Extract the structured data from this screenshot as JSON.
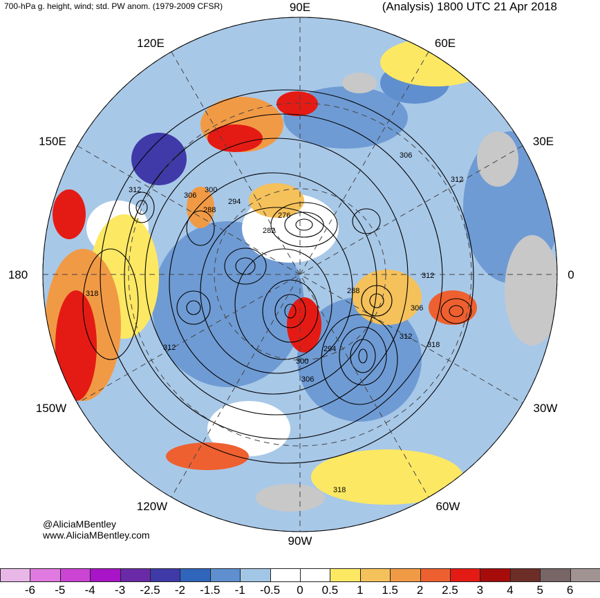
{
  "header": {
    "left_title": "700-hPa g. height, wind; std. PW anom. (1979-2009 CFSR)",
    "right_title": "(Analysis) 1800 UTC 21 Apr 2018"
  },
  "credits": {
    "handle": "@AliciaMBentley",
    "website": "www.AliciaMBentley.com"
  },
  "map": {
    "projection": "north-polar-stereographic",
    "longitude_labels": [
      "90E",
      "60E",
      "30E",
      "0",
      "30W",
      "60W",
      "90W",
      "120W",
      "150W",
      "180",
      "150E",
      "120E"
    ],
    "contour_labels": [
      "306",
      "312",
      "300",
      "294",
      "288",
      "276",
      "282",
      "306",
      "312",
      "318",
      "288",
      "312",
      "306",
      "312",
      "294",
      "300",
      "306",
      "318",
      "318",
      "312"
    ],
    "colors": {
      "land": "#c8c8c8",
      "contour": "#000000"
    }
  },
  "colorbar": {
    "tick_labels": [
      "-6",
      "-5",
      "-4",
      "-3",
      "-2.5",
      "-2",
      "-1.5",
      "-1",
      "-0.5",
      "0",
      "0.5",
      "1",
      "1.5",
      "2",
      "2.5",
      "3",
      "4",
      "5",
      "6"
    ],
    "colors": [
      "#e8b7e8",
      "#e07ae0",
      "#cc44d4",
      "#a814c8",
      "#6a2aa8",
      "#3f3aa8",
      "#2f66bb",
      "#5f8fcf",
      "#a2c6e6",
      "#ffffff",
      "#ffffff",
      "#fde863",
      "#f5c15a",
      "#f19a45",
      "#ee6030",
      "#e41b14",
      "#a60c0a",
      "#6e2e28",
      "#786565",
      "#a29393"
    ]
  }
}
